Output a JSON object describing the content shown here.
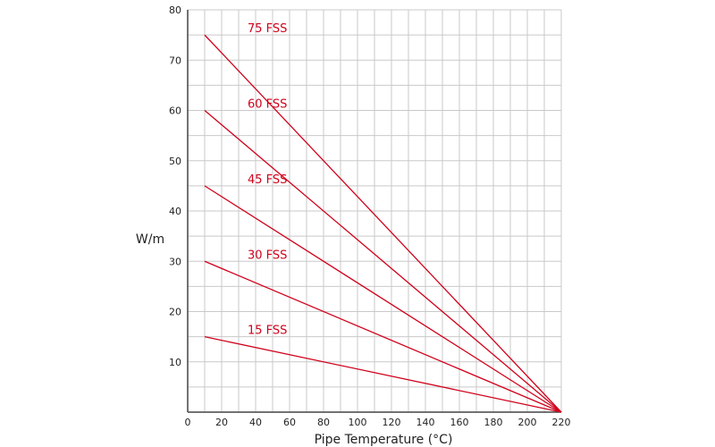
{
  "chart_data": {
    "type": "line",
    "title": "",
    "xlabel": "Pipe Temperature (°C)",
    "ylabel": "W/m",
    "xlim": [
      0,
      220
    ],
    "ylim": [
      0,
      80
    ],
    "x_ticks": [
      0,
      20,
      40,
      60,
      80,
      100,
      120,
      140,
      160,
      180,
      200,
      220
    ],
    "y_ticks": [
      10,
      20,
      30,
      40,
      50,
      60,
      70,
      80
    ],
    "grid": true,
    "series_color": "#d0021b",
    "series": [
      {
        "name": "75 FSS",
        "x": [
          10,
          220
        ],
        "y": [
          75,
          0
        ]
      },
      {
        "name": "60 FSS",
        "x": [
          10,
          220
        ],
        "y": [
          60,
          0
        ]
      },
      {
        "name": "45 FSS",
        "x": [
          10,
          220
        ],
        "y": [
          45,
          0
        ]
      },
      {
        "name": "30 FSS",
        "x": [
          10,
          220
        ],
        "y": [
          30,
          0
        ]
      },
      {
        "name": "15 FSS",
        "x": [
          10,
          220
        ],
        "y": [
          15,
          0
        ]
      }
    ]
  }
}
